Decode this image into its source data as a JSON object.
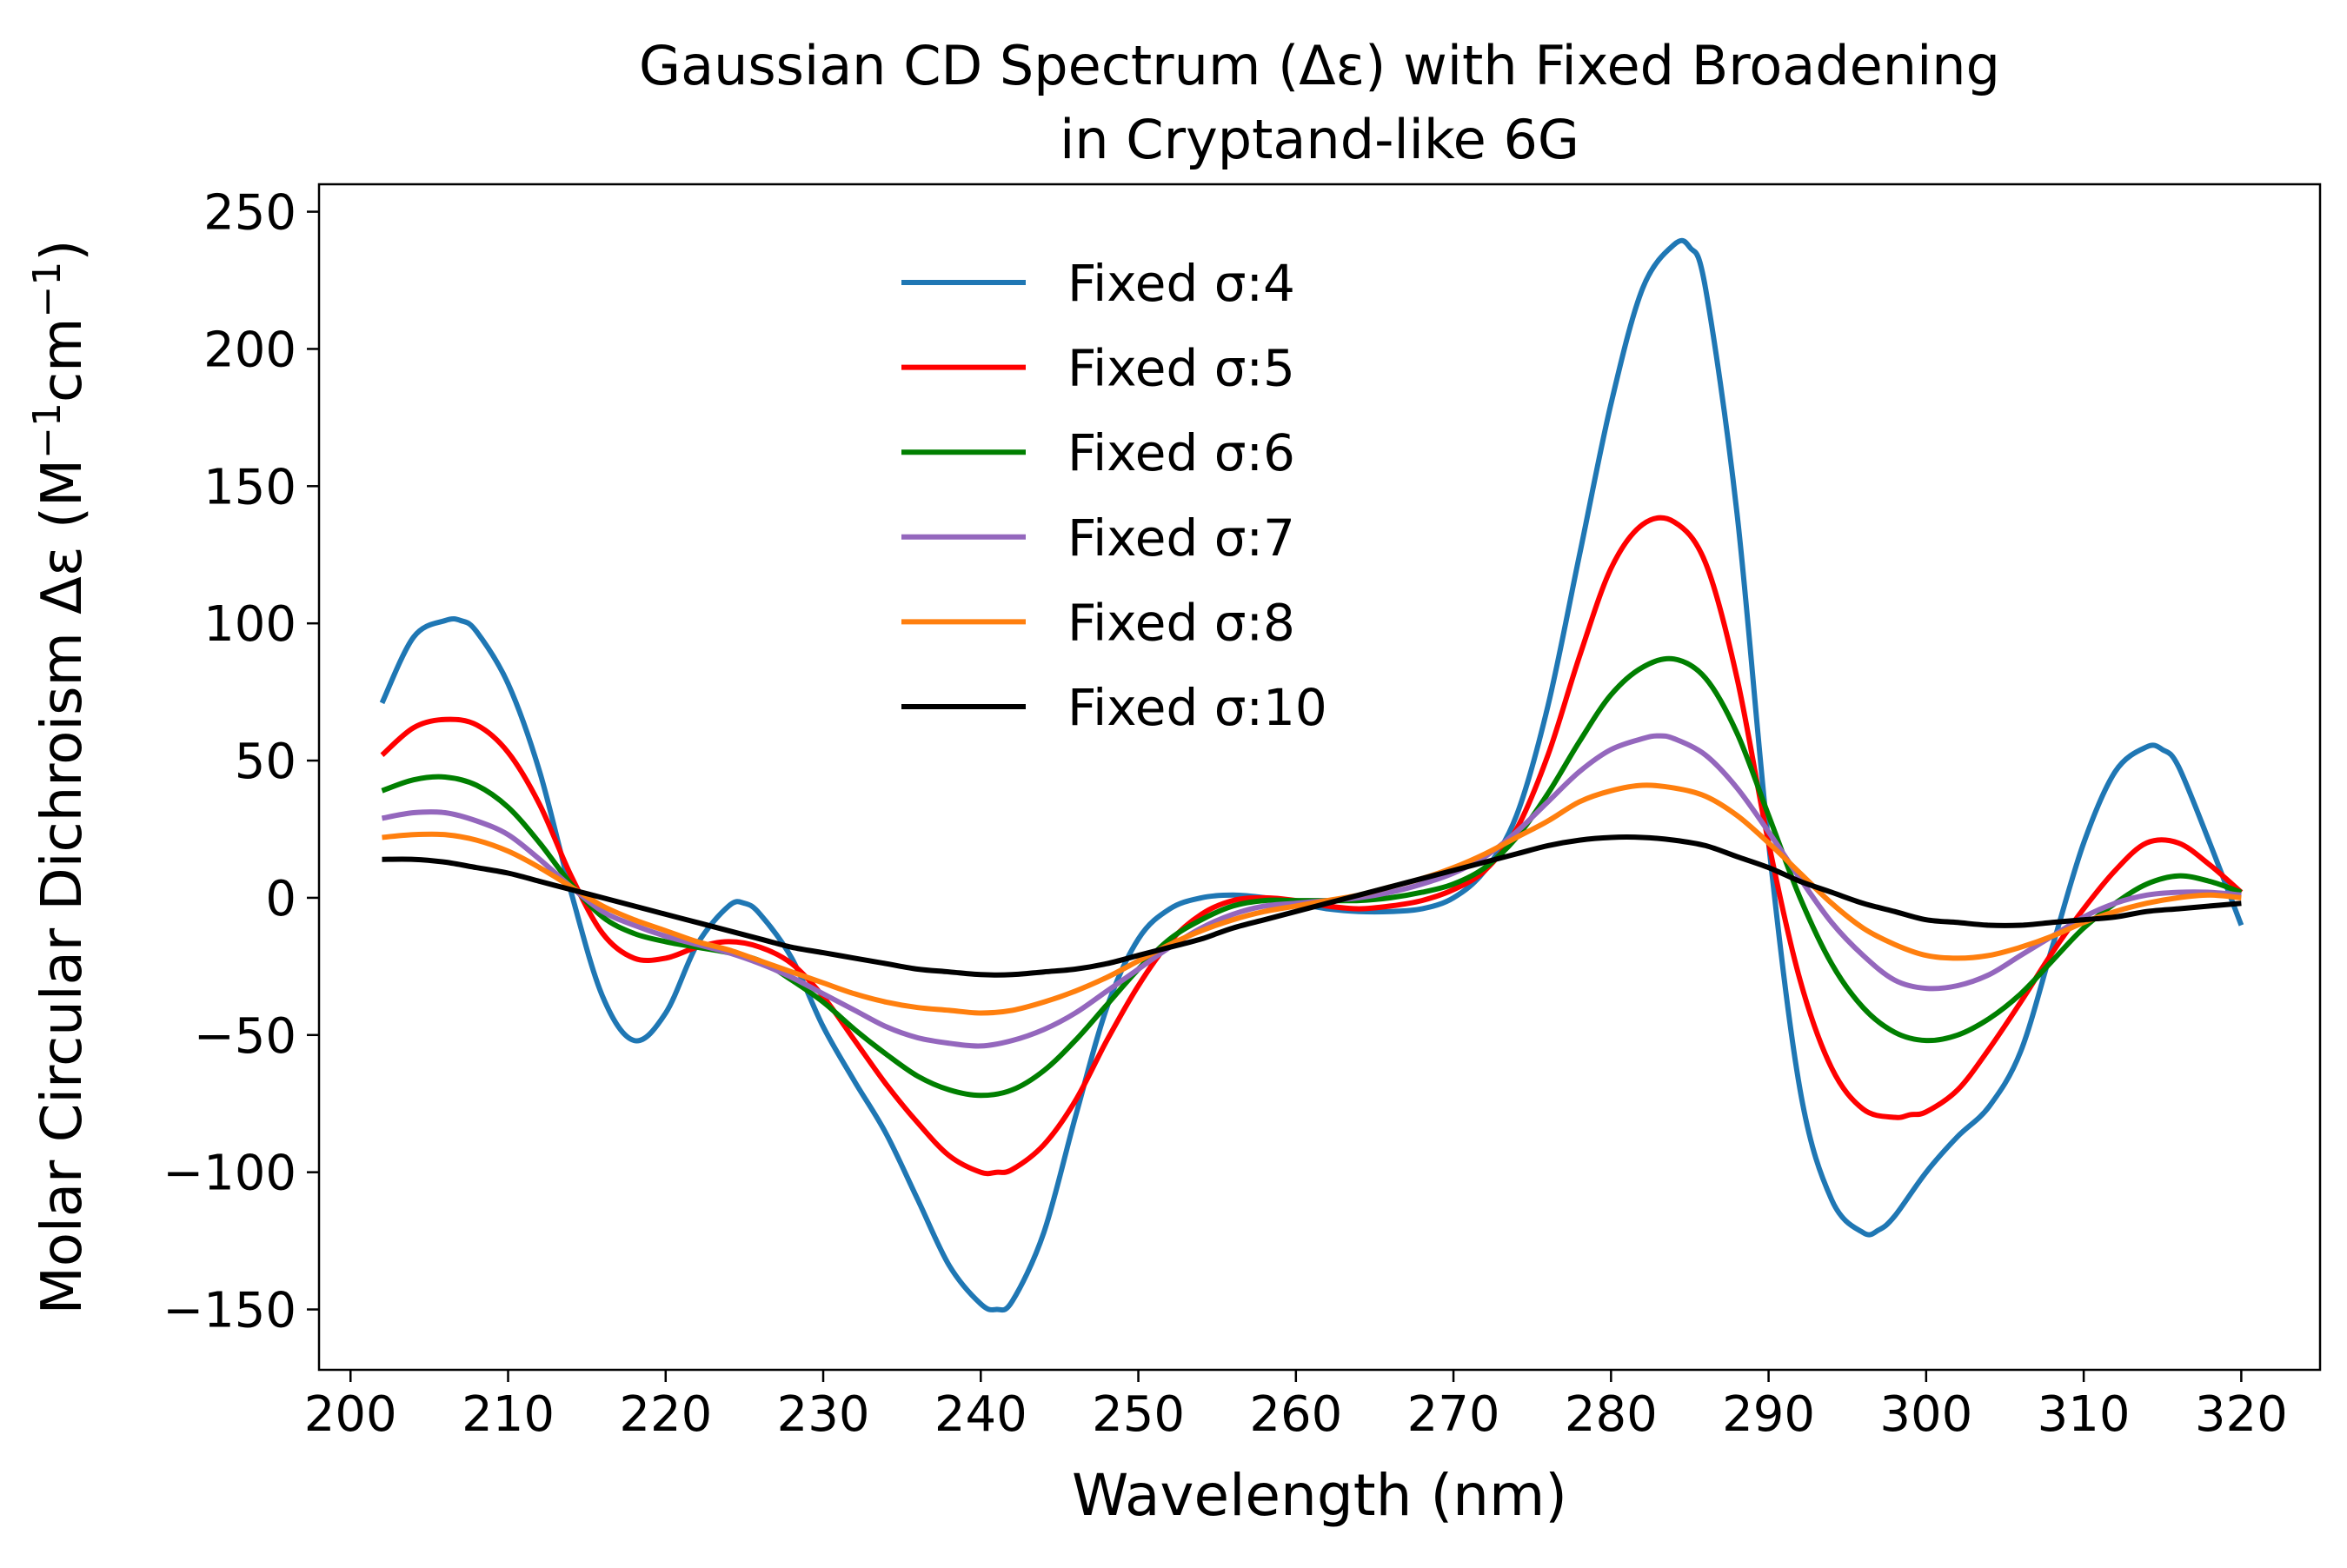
{
  "chart_data": {
    "type": "line",
    "title_lines": [
      "Gaussian CD Spectrum (Δε) with Fixed Broadening",
      "in Cryptand-like 6G"
    ],
    "xlabel": "Wavelength (nm)",
    "ylabel_main": "Molar Circular Dichroism Δε (M",
    "ylabel_sup1": "−1",
    "ylabel_mid": "cm",
    "ylabel_sup2": "−1",
    "ylabel_end": ")",
    "xlim": [
      198,
      325
    ],
    "ylim": [
      -172,
      260
    ],
    "x_ticks": [
      200,
      210,
      220,
      230,
      240,
      250,
      260,
      270,
      280,
      290,
      300,
      310,
      320
    ],
    "x_tick_labels": [
      "200",
      "210",
      "220",
      "230",
      "240",
      "250",
      "260",
      "270",
      "280",
      "290",
      "300",
      "310",
      "320"
    ],
    "y_ticks": [
      -150,
      -100,
      -50,
      0,
      50,
      100,
      150,
      200,
      250
    ],
    "y_tick_labels": [
      "−150",
      "−100",
      "−50",
      "0",
      "50",
      "100",
      "150",
      "200",
      "250"
    ],
    "grid": false,
    "legend_position": "upper-center",
    "series": [
      {
        "name": "Fixed σ:4",
        "color": "#1f77b4",
        "x": [
          202,
          204,
          206,
          207,
          208,
          210,
          212,
          214,
          216,
          218,
          220,
          222,
          224,
          225,
          226,
          228,
          230,
          232,
          234,
          236,
          238,
          240,
          241,
          242,
          244,
          246,
          248,
          250,
          252,
          254,
          256,
          258,
          260,
          262,
          264,
          266,
          268,
          270,
          272,
          274,
          276,
          278,
          280,
          282,
          284,
          285,
          286,
          288,
          290,
          292,
          294,
          296,
          297,
          298,
          300,
          302,
          304,
          306,
          308,
          310,
          312,
          314,
          315,
          316,
          318,
          320
        ],
        "y": [
          71,
          95,
          101,
          101,
          97,
          78,
          46,
          2,
          -36,
          -52,
          -42,
          -17,
          -3,
          -2,
          -6,
          -22,
          -47,
          -67,
          -86,
          -110,
          -134,
          -148,
          -150,
          -147,
          -122,
          -80,
          -40,
          -15,
          -4,
          0,
          1,
          0,
          -2,
          -4,
          -5,
          -5,
          -4,
          0,
          10,
          30,
          70,
          125,
          180,
          222,
          238,
          237,
          222,
          140,
          20,
          -70,
          -110,
          -122,
          -121,
          -116,
          -100,
          -87,
          -76,
          -56,
          -18,
          20,
          46,
          55,
          54,
          48,
          20,
          -10
        ]
      },
      {
        "name": "Fixed σ:5",
        "color": "#ff0000",
        "x": [
          202,
          204,
          206,
          208,
          210,
          212,
          214,
          216,
          218,
          220,
          222,
          224,
          226,
          228,
          230,
          232,
          234,
          236,
          238,
          240,
          241,
          242,
          244,
          246,
          248,
          250,
          252,
          254,
          256,
          258,
          260,
          262,
          264,
          266,
          268,
          270,
          272,
          274,
          276,
          278,
          280,
          282,
          284,
          286,
          288,
          290,
          292,
          294,
          296,
          298,
          299,
          300,
          302,
          304,
          306,
          308,
          310,
          312,
          314,
          316,
          318,
          320
        ],
        "y": [
          52,
          62,
          65,
          63,
          53,
          34,
          8,
          -13,
          -22,
          -22,
          -18,
          -16,
          -18,
          -24,
          -36,
          -52,
          -68,
          -82,
          -94,
          -100,
          -100,
          -99,
          -90,
          -74,
          -52,
          -32,
          -16,
          -6,
          -1,
          0,
          -1,
          -3,
          -4,
          -3,
          -1,
          3,
          10,
          25,
          52,
          88,
          120,
          136,
          137,
          122,
          80,
          20,
          -30,
          -62,
          -77,
          -80,
          -79,
          -78,
          -70,
          -55,
          -38,
          -20,
          -4,
          10,
          20,
          20,
          12,
          2
        ]
      },
      {
        "name": "Fixed σ:6",
        "color": "#007f00",
        "x": [
          202,
          204,
          206,
          208,
          210,
          212,
          214,
          216,
          218,
          220,
          222,
          224,
          226,
          228,
          230,
          232,
          234,
          236,
          238,
          240,
          242,
          244,
          246,
          248,
          250,
          252,
          254,
          256,
          258,
          260,
          262,
          264,
          266,
          268,
          270,
          272,
          274,
          276,
          278,
          280,
          282,
          284,
          286,
          288,
          290,
          292,
          294,
          296,
          298,
          300,
          302,
          304,
          306,
          308,
          310,
          312,
          314,
          316,
          318,
          320
        ],
        "y": [
          39,
          43,
          44,
          41,
          33,
          20,
          5,
          -7,
          -13,
          -16,
          -18,
          -20,
          -23,
          -30,
          -38,
          -48,
          -57,
          -65,
          -70,
          -72,
          -70,
          -63,
          -52,
          -39,
          -26,
          -15,
          -8,
          -3,
          -1,
          -1,
          -1,
          -1,
          0,
          2,
          5,
          11,
          22,
          38,
          57,
          74,
          84,
          87,
          80,
          60,
          30,
          0,
          -24,
          -40,
          -49,
          -52,
          -50,
          -44,
          -35,
          -23,
          -11,
          -2,
          5,
          8,
          6,
          2
        ]
      },
      {
        "name": "Fixed σ:7",
        "color": "#9467bd",
        "x": [
          202,
          204,
          206,
          208,
          210,
          212,
          214,
          216,
          218,
          220,
          222,
          224,
          226,
          228,
          230,
          232,
          234,
          236,
          238,
          240,
          242,
          244,
          246,
          248,
          250,
          252,
          254,
          256,
          258,
          260,
          262,
          264,
          266,
          268,
          270,
          272,
          274,
          276,
          278,
          280,
          282,
          283,
          284,
          286,
          288,
          290,
          292,
          294,
          296,
          298,
          300,
          302,
          304,
          306,
          308,
          310,
          312,
          314,
          316,
          318,
          320
        ],
        "y": [
          29,
          31,
          31,
          28,
          23,
          14,
          4,
          -5,
          -10,
          -14,
          -17,
          -20,
          -24,
          -29,
          -35,
          -41,
          -47,
          -51,
          -53,
          -54,
          -52,
          -48,
          -42,
          -34,
          -26,
          -18,
          -11,
          -6,
          -3,
          -2,
          -1,
          0,
          2,
          5,
          9,
          15,
          24,
          35,
          46,
          54,
          58,
          59,
          58,
          52,
          40,
          24,
          7,
          -9,
          -21,
          -30,
          -33,
          -32,
          -28,
          -21,
          -14,
          -7,
          -2,
          1,
          2,
          2,
          1
        ]
      },
      {
        "name": "Fixed σ:8",
        "color": "#ff7f0e",
        "x": [
          202,
          204,
          206,
          208,
          210,
          212,
          214,
          216,
          218,
          220,
          222,
          224,
          226,
          228,
          230,
          232,
          234,
          236,
          238,
          240,
          242,
          244,
          246,
          248,
          250,
          252,
          254,
          256,
          258,
          260,
          262,
          264,
          266,
          268,
          270,
          272,
          274,
          276,
          278,
          280,
          282,
          284,
          286,
          288,
          290,
          292,
          294,
          296,
          298,
          300,
          302,
          304,
          306,
          308,
          310,
          312,
          314,
          316,
          318,
          320
        ],
        "y": [
          22,
          23,
          23,
          21,
          17,
          11,
          4,
          -3,
          -8,
          -12,
          -16,
          -19,
          -23,
          -27,
          -31,
          -35,
          -38,
          -40,
          -41,
          -42,
          -41,
          -38,
          -34,
          -29,
          -23,
          -17,
          -12,
          -8,
          -5,
          -3,
          -1,
          1,
          4,
          7,
          11,
          16,
          22,
          28,
          35,
          39,
          41,
          40,
          37,
          30,
          20,
          9,
          -2,
          -11,
          -17,
          -21,
          -22,
          -21,
          -18,
          -14,
          -9,
          -5,
          -2,
          0,
          1,
          0
        ]
      },
      {
        "name": "Fixed σ:10",
        "color": "#000000",
        "x": [
          202,
          204,
          206,
          208,
          210,
          212,
          214,
          216,
          218,
          220,
          222,
          224,
          226,
          228,
          230,
          232,
          234,
          236,
          238,
          240,
          242,
          244,
          246,
          248,
          250,
          252,
          254,
          256,
          258,
          260,
          262,
          264,
          266,
          268,
          270,
          272,
          274,
          276,
          278,
          280,
          282,
          284,
          286,
          288,
          290,
          292,
          294,
          296,
          298,
          300,
          302,
          304,
          306,
          308,
          310,
          312,
          314,
          316,
          318,
          320
        ],
        "y": [
          14,
          14,
          13,
          11,
          9,
          6,
          3,
          0,
          -3,
          -6,
          -9,
          -12,
          -15,
          -18,
          -20,
          -22,
          -24,
          -26,
          -27,
          -28,
          -28,
          -27,
          -26,
          -24,
          -21,
          -18,
          -15,
          -11,
          -8,
          -5,
          -2,
          1,
          4,
          7,
          10,
          13,
          16,
          19,
          21,
          22,
          22,
          21,
          19,
          15,
          11,
          6,
          2,
          -2,
          -5,
          -8,
          -9,
          -10,
          -10,
          -9,
          -8,
          -7,
          -5,
          -4,
          -3,
          -2
        ]
      }
    ]
  }
}
